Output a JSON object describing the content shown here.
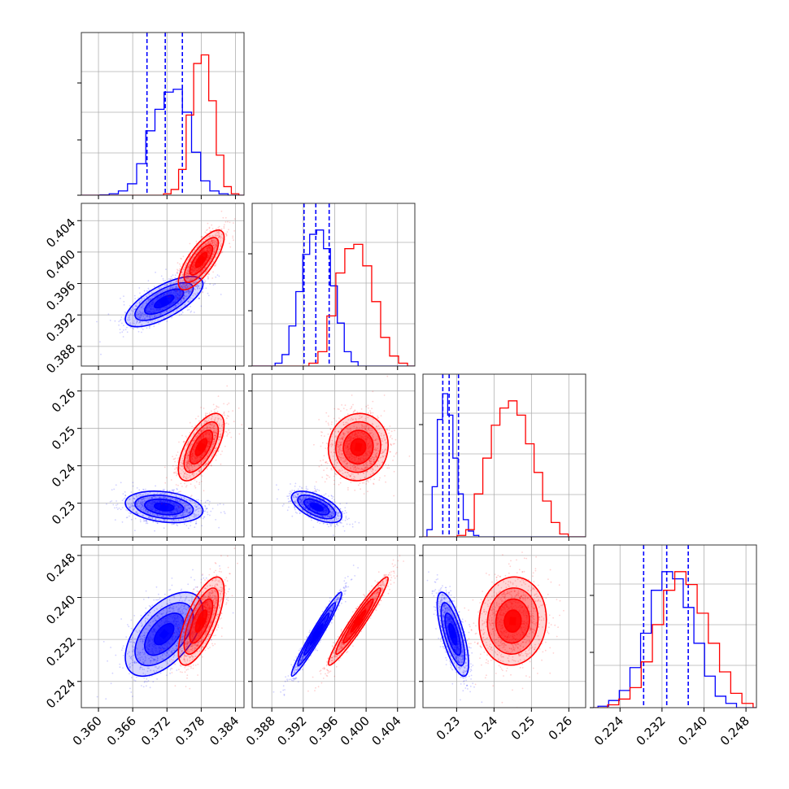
{
  "chart_data": {
    "type": "corner",
    "parameters": [
      {
        "ticks": [
          "0.360",
          "0.366",
          "0.372",
          "0.378",
          "0.384"
        ],
        "tick_values": [
          0.36,
          0.366,
          0.372,
          0.378,
          0.384
        ],
        "range": [
          0.357,
          0.3855
        ]
      },
      {
        "ticks": [
          "0.388",
          "0.392",
          "0.396",
          "0.400",
          "0.404"
        ],
        "tick_values": [
          0.388,
          0.392,
          0.396,
          0.4,
          0.404
        ],
        "range": [
          0.3855,
          0.4062
        ]
      },
      {
        "ticks": [
          "0.23",
          "0.24",
          "0.25",
          "0.26"
        ],
        "tick_values": [
          0.23,
          0.24,
          0.25,
          0.26
        ],
        "range": [
          0.221,
          0.2645
        ]
      },
      {
        "ticks": [
          "0.224",
          "0.232",
          "0.240",
          "0.248"
        ],
        "tick_values": [
          0.224,
          0.232,
          0.24,
          0.248
        ],
        "range": [
          0.219,
          0.25
        ]
      }
    ],
    "series": [
      {
        "color": "#0000ff",
        "means": [
          0.3715,
          0.3937,
          0.229,
          0.233
        ],
        "sigmas": [
          0.0034,
          0.0016,
          0.0021,
          0.004
        ],
        "correlations": {
          "1-0": 0.7,
          "2-0": -0.25,
          "2-1": -0.6,
          "3-0": 0.55,
          "3-1": 0.97,
          "3-2": -0.7
        },
        "quantiles": [
          [
            0.3685,
            0.3717,
            0.3747
          ],
          [
            0.3921,
            0.3936,
            0.3953
          ],
          [
            0.2263,
            0.228,
            0.2305
          ],
          [
            0.2285,
            0.2329,
            0.237
          ]
        ],
        "hist": [
          [
            0.003,
            0.01,
            0.03,
            0.08,
            0.22,
            0.45,
            0.6,
            0.72,
            0.74,
            0.58,
            0.3,
            0.1,
            0.03,
            0.01
          ],
          [
            0.02,
            0.08,
            0.28,
            0.52,
            0.78,
            0.92,
            0.95,
            0.82,
            0.56,
            0.3,
            0.1,
            0.03
          ],
          [
            0.05,
            0.35,
            0.82,
            1.0,
            0.85,
            0.55,
            0.3,
            0.12,
            0.04,
            0.01
          ],
          [
            0.01,
            0.05,
            0.12,
            0.28,
            0.52,
            0.82,
            0.95,
            0.9,
            0.7,
            0.45,
            0.22,
            0.08,
            0.03
          ]
        ]
      },
      {
        "color": "#ff0000",
        "means": [
          0.378,
          0.399,
          0.245,
          0.2355
        ],
        "sigmas": [
          0.002,
          0.0019,
          0.0045,
          0.0042
        ],
        "correlations": {
          "1-0": 0.75,
          "2-0": 0.65,
          "2-1": 0.05,
          "3-0": 0.7,
          "3-1": 0.96,
          "3-2": 0.05
        },
        "quantiles": [],
        "hist": [
          [
            0.01,
            0.04,
            0.18,
            0.56,
            0.92,
            0.98,
            0.66,
            0.28,
            0.06,
            0.01
          ],
          [
            0.02,
            0.1,
            0.35,
            0.65,
            0.82,
            0.85,
            0.7,
            0.45,
            0.2,
            0.07,
            0.02
          ],
          [
            0.01,
            0.05,
            0.3,
            0.55,
            0.78,
            0.9,
            0.95,
            0.85,
            0.65,
            0.45,
            0.25,
            0.1,
            0.02
          ],
          [
            0.02,
            0.06,
            0.14,
            0.32,
            0.58,
            0.82,
            0.95,
            0.86,
            0.66,
            0.45,
            0.25,
            0.1,
            0.03
          ]
        ]
      }
    ],
    "grid": true,
    "contour_levels": [
      0.5,
      1.0,
      1.5,
      2.0
    ]
  }
}
